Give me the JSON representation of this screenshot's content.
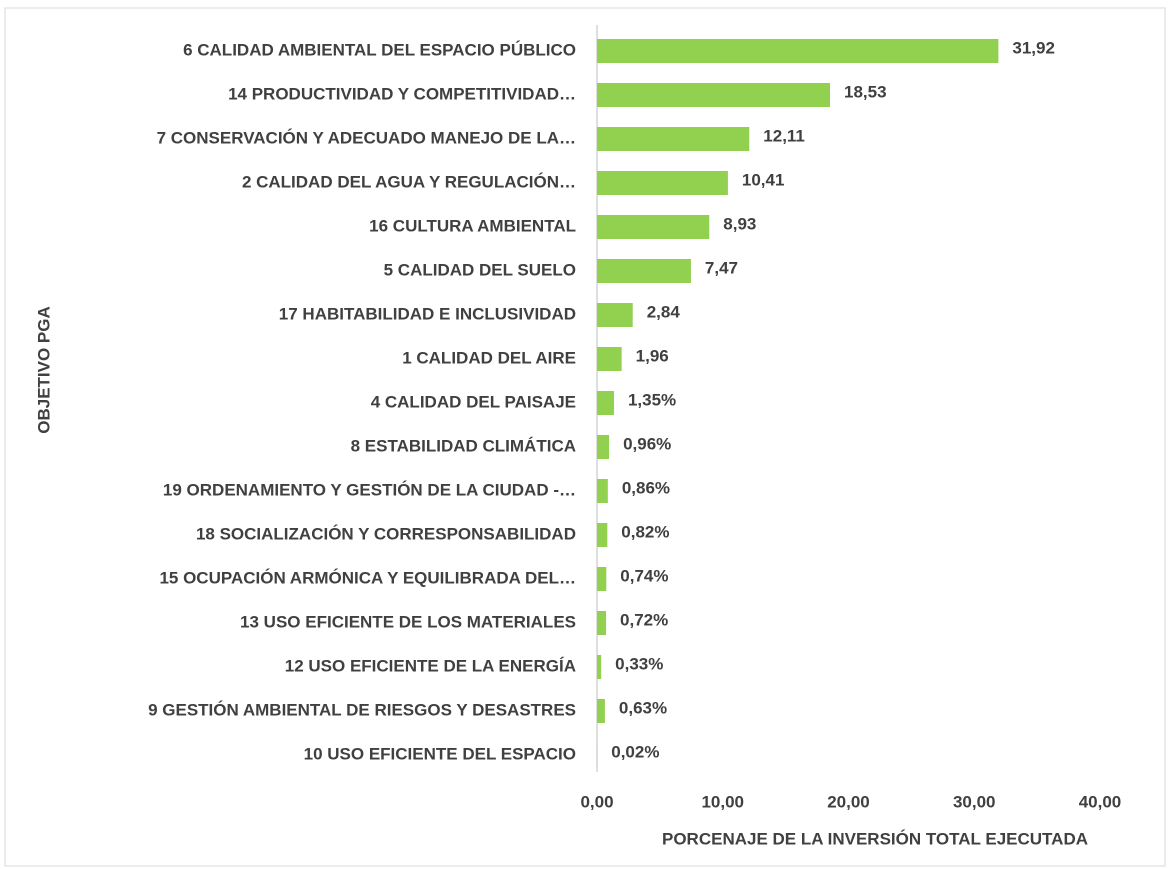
{
  "chart_data": {
    "type": "bar",
    "categories": [
      "6 CALIDAD AMBIENTAL DEL ESPACIO PÚBLICO",
      "14 PRODUCTIVIDAD Y COMPETITIVIDAD…",
      "7 CONSERVACIÓN Y ADECUADO MANEJO DE LA…",
      "2 CALIDAD DEL AGUA Y REGULACIÓN…",
      "16 CULTURA AMBIENTAL",
      "5 CALIDAD DEL SUELO",
      "17 HABITABILIDAD E INCLUSIVIDAD",
      "1 CALIDAD DEL AIRE",
      "4 CALIDAD DEL PAISAJE",
      "8 ESTABILIDAD CLIMÁTICA",
      "19 ORDENAMIENTO Y GESTIÓN DE LA CIUDAD -…",
      "18 SOCIALIZACIÓN Y CORRESPONSABILIDAD",
      "15 OCUPACIÓN ARMÓNICA Y EQUILIBRADA DEL…",
      "13 USO EFICIENTE DE LOS MATERIALES",
      "12 USO EFICIENTE DE LA ENERGÍA",
      "9 GESTIÓN AMBIENTAL DE RIESGOS Y DESASTRES",
      "10 USO EFICIENTE DEL ESPACIO"
    ],
    "values": [
      31.92,
      18.53,
      12.11,
      10.41,
      8.93,
      7.47,
      2.84,
      1.96,
      1.35,
      0.96,
      0.86,
      0.82,
      0.74,
      0.72,
      0.33,
      0.63,
      0.02
    ],
    "value_labels": [
      "31,92",
      "18,53",
      "12,11",
      "10,41",
      "8,93",
      "7,47",
      "2,84",
      "1,96",
      "1,35%",
      "0,96%",
      "0,86%",
      "0,82%",
      "0,74%",
      "0,72%",
      "0,33%",
      "0,63%",
      "0,02%"
    ],
    "color": "#92d050",
    "xlim": [
      0,
      40
    ],
    "xticks": [
      {
        "value": 0,
        "label": "0,00"
      },
      {
        "value": 10,
        "label": "10,00"
      },
      {
        "value": 20,
        "label": "20,00"
      },
      {
        "value": 30,
        "label": "30,00"
      },
      {
        "value": 40,
        "label": "40,00"
      }
    ],
    "x_label": "PORCENAJE DE LA INVERSIÓN TOTAL EJECUTADA",
    "y_label": "OBJETIVO PGA"
  }
}
